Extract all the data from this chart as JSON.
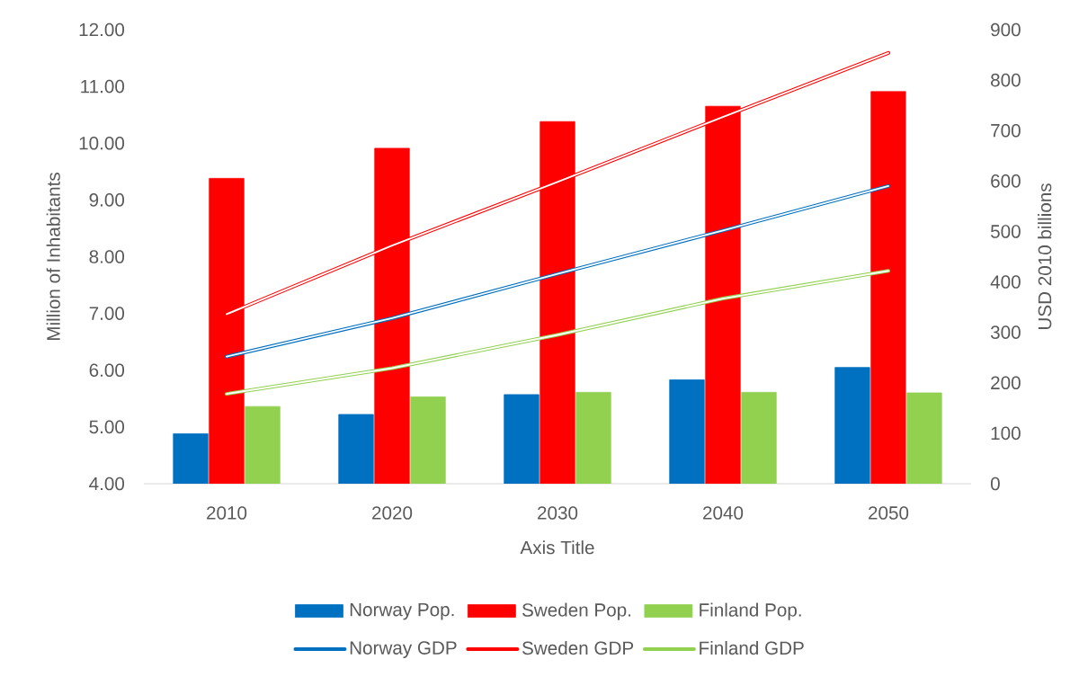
{
  "chart_data": {
    "type": "bar",
    "categories": [
      "2010",
      "2020",
      "2030",
      "2040",
      "2050"
    ],
    "xlabel": "Axis Title",
    "ylabel": "Million of Inhabitants",
    "y2label": "USD 2010 billions",
    "ylim": [
      4,
      12
    ],
    "yticks": [
      {
        "value": 4,
        "label": "4.00"
      },
      {
        "value": 5,
        "label": "5.00"
      },
      {
        "value": 6,
        "label": "6.00"
      },
      {
        "value": 7,
        "label": "7.00"
      },
      {
        "value": 8,
        "label": "8.00"
      },
      {
        "value": 9,
        "label": "9.00"
      },
      {
        "value": 10,
        "label": "10.00"
      },
      {
        "value": 11,
        "label": "11.00"
      },
      {
        "value": 12,
        "label": "12.00"
      }
    ],
    "y2lim": [
      0,
      900
    ],
    "y2ticks": [
      0,
      100,
      200,
      300,
      400,
      500,
      600,
      700,
      800,
      900
    ],
    "grid": false,
    "legend": "bottom",
    "series": [
      {
        "name": "Norway Pop.",
        "color": "#0070c0",
        "values": [
          4.88,
          5.22,
          5.57,
          5.83,
          6.05
        ]
      },
      {
        "name": "Sweden Pop.",
        "color": "#ff0000",
        "values": [
          9.38,
          9.91,
          10.38,
          10.65,
          10.91
        ]
      },
      {
        "name": "Finland Pop.",
        "color": "#92d050",
        "values": [
          5.36,
          5.53,
          5.61,
          5.61,
          5.6
        ]
      },
      {
        "name": "Norway GDP",
        "type": "line",
        "axis": "y2",
        "color": "#0070c0",
        "values": [
          252,
          328,
          416,
          502,
          590
        ]
      },
      {
        "name": "Sweden GDP",
        "type": "line",
        "axis": "y2",
        "color": "#ff0000",
        "values": [
          336,
          472,
          598,
          727,
          854
        ]
      },
      {
        "name": "Finland GDP",
        "type": "line",
        "axis": "y2",
        "color": "#92d050",
        "values": [
          178,
          229,
          295,
          367,
          422
        ]
      }
    ]
  }
}
